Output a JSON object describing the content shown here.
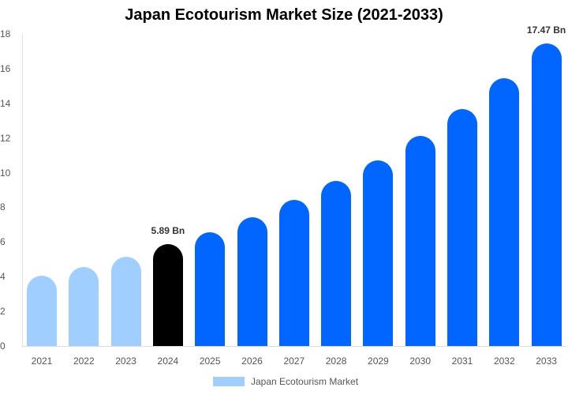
{
  "chart_data": {
    "type": "bar",
    "title": "Japan Ecotourism Market Size (2021-2033)",
    "xlabel": "",
    "ylabel": "",
    "ylim": [
      0,
      18
    ],
    "yticks": [
      0,
      2,
      4,
      6,
      8,
      10,
      12,
      14,
      16,
      18
    ],
    "grid": false,
    "legend_position": "bottom",
    "categories": [
      "2021",
      "2022",
      "2023",
      "2024",
      "2025",
      "2026",
      "2027",
      "2028",
      "2029",
      "2030",
      "2031",
      "2032",
      "2033"
    ],
    "series": [
      {
        "name": "Japan Ecotourism Market",
        "values": [
          4.05,
          4.56,
          5.15,
          5.89,
          6.56,
          7.43,
          8.43,
          9.53,
          10.71,
          12.12,
          13.67,
          15.45,
          17.47
        ]
      }
    ],
    "bar_colors": [
      "#a0cfff",
      "#a0cfff",
      "#a0cfff",
      "#000000",
      "#0066ff",
      "#0066ff",
      "#0066ff",
      "#0066ff",
      "#0066ff",
      "#0066ff",
      "#0066ff",
      "#0066ff",
      "#0066ff"
    ],
    "annotations": [
      {
        "category": "2024",
        "text": "5.89 Bn"
      },
      {
        "category": "2033",
        "text": "17.47 Bn"
      }
    ],
    "legend": [
      {
        "label": "Japan Ecotourism Market",
        "color": "#a0cfff"
      }
    ]
  }
}
